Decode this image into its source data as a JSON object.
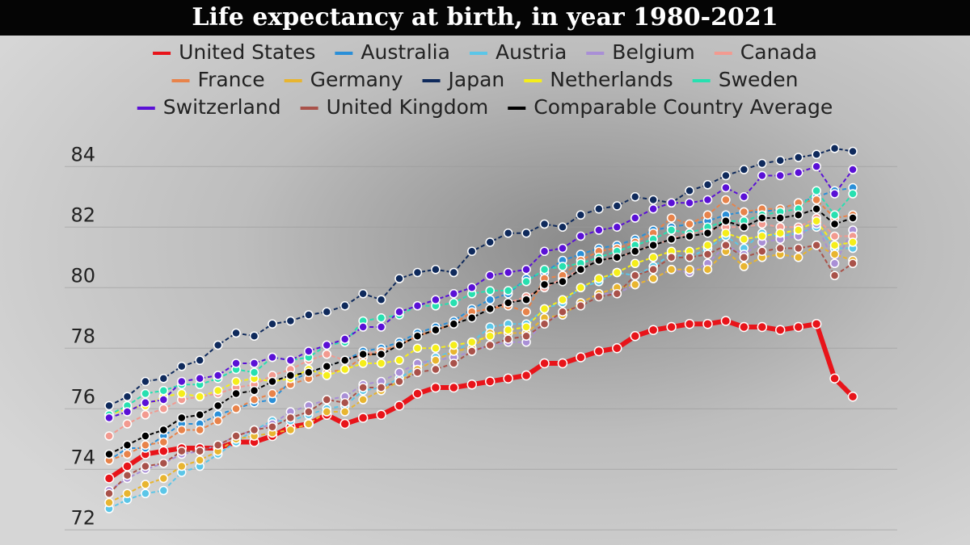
{
  "chart_data": {
    "type": "line",
    "title": "Life expectancy at birth, in year 1980-2021",
    "categories": [
      null,
      null,
      null,
      null,
      null,
      null,
      null,
      null,
      null,
      null,
      null,
      null,
      null,
      null,
      null,
      null,
      null,
      null,
      null,
      null,
      null,
      null,
      null,
      null,
      null,
      null,
      null,
      null,
      null,
      null,
      null,
      null,
      null,
      null,
      null,
      null,
      null,
      null,
      null,
      null,
      null,
      null
    ],
    "ylim": [
      71.5,
      85
    ],
    "yticks": [
      72,
      74,
      76,
      78,
      80,
      82,
      84
    ],
    "grid": true,
    "series": [
      {
        "name": "United States",
        "color": "#e8141a",
        "values": [
          73.7,
          74.1,
          74.5,
          74.6,
          74.7,
          74.7,
          74.7,
          74.9,
          74.9,
          75.1,
          75.4,
          75.5,
          75.8,
          75.5,
          75.7,
          75.8,
          76.1,
          76.5,
          76.7,
          76.7,
          76.8,
          76.9,
          77.0,
          77.1,
          77.5,
          77.5,
          77.7,
          77.9,
          78.0,
          78.4,
          78.6,
          78.7,
          78.8,
          78.8,
          78.9,
          78.7,
          78.7,
          78.6,
          78.7,
          78.8,
          77.0,
          76.4
        ]
      },
      {
        "name": "Australia",
        "color": "#2a8fd8",
        "values": [
          74.3,
          74.7,
          74.7,
          75.1,
          75.5,
          75.5,
          75.8,
          76.0,
          76.2,
          76.3,
          76.9,
          77.2,
          77.4,
          77.6,
          77.9,
          78.0,
          78.2,
          78.5,
          78.7,
          78.9,
          79.3,
          79.6,
          79.8,
          80.3,
          80.5,
          80.9,
          81.1,
          81.3,
          81.4,
          81.6,
          81.9,
          82.0,
          82.1,
          82.2,
          82.4,
          82.5,
          82.5,
          82.6,
          82.8,
          83.0,
          83.2,
          83.3
        ]
      },
      {
        "name": "Austria",
        "color": "#5bc6e8",
        "values": [
          72.7,
          73.0,
          73.2,
          73.3,
          73.9,
          74.1,
          74.5,
          74.9,
          75.3,
          75.6,
          75.6,
          75.8,
          76.0,
          76.1,
          76.6,
          76.7,
          77.0,
          77.4,
          77.7,
          77.9,
          78.2,
          78.7,
          78.8,
          78.8,
          79.3,
          79.5,
          80.0,
          80.2,
          80.5,
          80.4,
          80.7,
          81.1,
          81.0,
          81.3,
          81.7,
          81.3,
          81.8,
          81.7,
          81.8,
          82.0,
          81.3,
          81.3
        ]
      },
      {
        "name": "Belgium",
        "color": "#a98fd6",
        "values": [
          73.3,
          73.7,
          74.0,
          74.2,
          74.5,
          74.6,
          74.8,
          75.1,
          75.3,
          75.5,
          75.9,
          76.1,
          76.3,
          76.4,
          76.8,
          76.9,
          77.2,
          77.5,
          77.6,
          77.7,
          77.9,
          78.1,
          78.2,
          78.2,
          78.9,
          79.1,
          79.5,
          79.8,
          79.8,
          80.1,
          80.3,
          80.6,
          80.5,
          80.8,
          81.4,
          81.1,
          81.5,
          81.6,
          81.7,
          82.1,
          80.8,
          81.9
        ]
      },
      {
        "name": "Canada",
        "color": "#f29a90",
        "values": [
          75.1,
          75.5,
          75.8,
          76.0,
          76.3,
          76.4,
          76.5,
          76.7,
          76.8,
          77.1,
          77.3,
          77.6,
          77.8,
          77.6,
          77.8,
          77.9,
          78.1,
          78.4,
          78.6,
          78.8,
          79.2,
          79.3,
          79.5,
          79.7,
          80.0,
          80.3,
          80.6,
          80.9,
          81.0,
          81.2,
          81.4,
          81.6,
          81.8,
          81.9,
          82.0,
          82.0,
          82.1,
          82.0,
          82.0,
          82.3,
          81.7,
          81.7
        ]
      },
      {
        "name": "France",
        "color": "#e8834a",
        "values": [
          74.3,
          74.5,
          74.8,
          74.9,
          75.3,
          75.3,
          75.6,
          76.0,
          76.3,
          76.5,
          76.8,
          77.0,
          77.2,
          77.3,
          77.7,
          77.9,
          78.1,
          78.4,
          78.6,
          78.8,
          79.2,
          79.3,
          79.4,
          79.2,
          80.3,
          80.4,
          80.9,
          81.2,
          81.3,
          81.5,
          81.8,
          82.3,
          82.1,
          82.4,
          82.9,
          82.5,
          82.6,
          82.6,
          82.8,
          82.9,
          82.3,
          82.4
        ]
      },
      {
        "name": "Germany",
        "color": "#e8b530",
        "values": [
          72.9,
          73.2,
          73.5,
          73.7,
          74.1,
          74.3,
          74.6,
          75.0,
          75.1,
          75.2,
          75.3,
          75.5,
          75.9,
          75.9,
          76.3,
          76.6,
          76.9,
          77.3,
          77.6,
          77.9,
          78.0,
          78.5,
          78.5,
          78.5,
          79.0,
          79.1,
          79.5,
          79.8,
          80.0,
          80.1,
          80.3,
          80.6,
          80.6,
          80.6,
          81.2,
          80.7,
          81.0,
          81.1,
          81.0,
          81.4,
          81.1,
          80.9
        ]
      },
      {
        "name": "Japan",
        "color": "#0f2a5c",
        "values": [
          76.1,
          76.4,
          76.9,
          77.0,
          77.4,
          77.6,
          78.1,
          78.5,
          78.4,
          78.8,
          78.9,
          79.1,
          79.2,
          79.4,
          79.8,
          79.6,
          80.3,
          80.5,
          80.6,
          80.5,
          81.2,
          81.5,
          81.8,
          81.8,
          82.1,
          82.0,
          82.4,
          82.6,
          82.7,
          83.0,
          82.9,
          82.8,
          83.2,
          83.4,
          83.7,
          83.9,
          84.1,
          84.2,
          84.3,
          84.4,
          84.6,
          84.5
        ]
      },
      {
        "name": "Netherlands",
        "color": "#f5ee1a",
        "values": [
          75.8,
          76.0,
          76.1,
          76.4,
          76.5,
          76.4,
          76.6,
          76.9,
          77.0,
          76.9,
          77.0,
          77.3,
          77.1,
          77.3,
          77.5,
          77.5,
          77.6,
          78.0,
          78.0,
          78.1,
          78.2,
          78.4,
          78.6,
          78.7,
          79.3,
          79.6,
          80.0,
          80.3,
          80.5,
          80.8,
          81.0,
          81.2,
          81.2,
          81.4,
          81.8,
          81.6,
          81.7,
          81.8,
          81.9,
          82.2,
          81.4,
          81.5
        ]
      },
      {
        "name": "Sweden",
        "color": "#27e0b0",
        "values": [
          75.8,
          76.1,
          76.5,
          76.6,
          76.8,
          76.8,
          77.0,
          77.3,
          77.2,
          77.7,
          77.6,
          77.7,
          78.1,
          78.2,
          78.9,
          79.0,
          79.1,
          79.4,
          79.4,
          79.5,
          79.8,
          79.9,
          79.9,
          80.2,
          80.6,
          80.7,
          80.8,
          81.0,
          81.2,
          81.4,
          81.6,
          81.9,
          81.8,
          82.0,
          82.2,
          82.2,
          82.4,
          82.5,
          82.6,
          83.2,
          82.4,
          83.1
        ]
      },
      {
        "name": "Switzerland",
        "color": "#5a10d6",
        "values": [
          75.7,
          75.9,
          76.2,
          76.3,
          76.9,
          77.0,
          77.1,
          77.5,
          77.5,
          77.7,
          77.6,
          77.9,
          78.1,
          78.3,
          78.7,
          78.7,
          79.2,
          79.4,
          79.6,
          79.8,
          80.0,
          80.4,
          80.5,
          80.6,
          81.2,
          81.3,
          81.7,
          81.9,
          82.0,
          82.3,
          82.6,
          82.8,
          82.8,
          82.9,
          83.3,
          83.0,
          83.7,
          83.7,
          83.8,
          84.0,
          83.1,
          83.9
        ]
      },
      {
        "name": "United Kingdom",
        "color": "#a9524a",
        "values": [
          73.2,
          73.8,
          74.1,
          74.2,
          74.6,
          74.6,
          74.8,
          75.1,
          75.3,
          75.4,
          75.7,
          75.9,
          76.3,
          76.2,
          76.7,
          76.7,
          76.9,
          77.2,
          77.3,
          77.5,
          77.9,
          78.1,
          78.3,
          78.4,
          78.8,
          79.2,
          79.4,
          79.7,
          79.8,
          80.4,
          80.6,
          81.0,
          81.0,
          81.1,
          81.4,
          81.0,
          81.2,
          81.3,
          81.3,
          81.4,
          80.4,
          80.8
        ]
      },
      {
        "name": "Comparable Country Average",
        "color": "#000000",
        "values": [
          74.5,
          74.8,
          75.1,
          75.3,
          75.7,
          75.8,
          76.1,
          76.5,
          76.6,
          76.9,
          77.1,
          77.2,
          77.4,
          77.6,
          77.8,
          77.8,
          78.1,
          78.4,
          78.6,
          78.8,
          79.0,
          79.3,
          79.5,
          79.6,
          80.1,
          80.2,
          80.6,
          80.9,
          81.0,
          81.2,
          81.4,
          81.6,
          81.7,
          81.8,
          82.2,
          82.0,
          82.3,
          82.3,
          82.4,
          82.6,
          82.1,
          82.3
        ]
      }
    ]
  }
}
